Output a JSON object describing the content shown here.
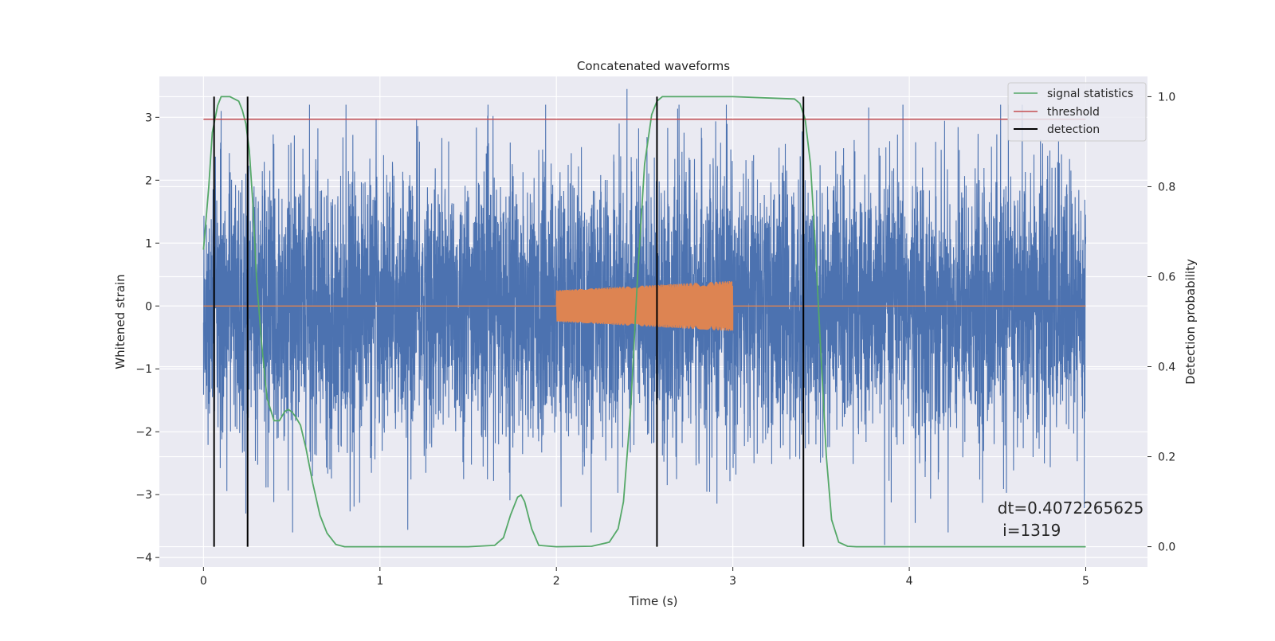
{
  "chart_data": {
    "type": "line",
    "title": "Concatenated waveforms",
    "xlabel": "Time (s)",
    "ylabel": "Whitened strain",
    "y2label": "Detection probability",
    "xlim": [
      -0.25,
      5.35
    ],
    "ylim": [
      -4.15,
      3.65
    ],
    "y2lim": [
      -0.045,
      1.045
    ],
    "x_ticks": [
      0,
      1,
      2,
      3,
      4,
      5
    ],
    "y_ticks": [
      -4,
      -3,
      -2,
      -1,
      0,
      1,
      2,
      3
    ],
    "y2_ticks": [
      0.0,
      0.2,
      0.4,
      0.6,
      0.8,
      1.0
    ],
    "grid": true,
    "legend_position": "top-right",
    "legend": [
      {
        "label": "signal statistics",
        "color": "#55a868"
      },
      {
        "label": "threshold",
        "color": "#c44e52"
      },
      {
        "label": "detection",
        "color": "#000000"
      }
    ],
    "series": [
      {
        "role": "strain",
        "color": "#4c72b0",
        "x_range": [
          0,
          5
        ],
        "typical_amplitude": 1.3,
        "peaks": [
          3.45,
          3.1,
          -3.8,
          -3.3
        ]
      },
      {
        "role": "template",
        "color": "#dd8452",
        "x_range": [
          0,
          5
        ],
        "chirp_x_range": [
          2,
          3
        ],
        "amplitude_range": [
          0.25,
          0.4
        ]
      },
      {
        "name": "signal statistics",
        "color": "#55a868",
        "axis": "right",
        "x": [
          0,
          0.03,
          0.05,
          0.08,
          0.1,
          0.12,
          0.15,
          0.2,
          0.22,
          0.24,
          0.26,
          0.28,
          0.3,
          0.33,
          0.36,
          0.4,
          0.43,
          0.46,
          0.48,
          0.5,
          0.52,
          0.55,
          0.58,
          0.62,
          0.66,
          0.7,
          0.75,
          0.8,
          1.0,
          1.5,
          1.65,
          1.7,
          1.74,
          1.78,
          1.8,
          1.82,
          1.86,
          1.9,
          2.0,
          2.2,
          2.3,
          2.35,
          2.38,
          2.42,
          2.46,
          2.5,
          2.54,
          2.57,
          2.6,
          2.65,
          2.7,
          2.8,
          3.0,
          3.35,
          3.38,
          3.41,
          3.44,
          3.47,
          3.5,
          3.53,
          3.56,
          3.6,
          3.65,
          3.7,
          4.0,
          5.0
        ],
        "y": [
          0.66,
          0.8,
          0.92,
          0.98,
          1.0,
          1.0,
          1.0,
          0.99,
          0.97,
          0.94,
          0.88,
          0.76,
          0.6,
          0.45,
          0.33,
          0.28,
          0.28,
          0.3,
          0.305,
          0.3,
          0.29,
          0.27,
          0.22,
          0.14,
          0.07,
          0.03,
          0.005,
          0.0,
          0.0,
          0.0,
          0.003,
          0.02,
          0.07,
          0.11,
          0.115,
          0.1,
          0.04,
          0.003,
          0.0,
          0.001,
          0.01,
          0.04,
          0.1,
          0.3,
          0.6,
          0.85,
          0.96,
          0.99,
          1.0,
          1.0,
          1.0,
          1.0,
          1.0,
          0.995,
          0.985,
          0.95,
          0.85,
          0.65,
          0.42,
          0.2,
          0.06,
          0.01,
          0.001,
          0.0,
          0.0,
          0.0
        ]
      },
      {
        "name": "threshold",
        "color": "#c44e52",
        "axis": "right",
        "x": [
          0,
          5
        ],
        "y": [
          0.95,
          0.95
        ]
      }
    ],
    "detections_x": [
      0.06,
      0.25,
      2.57,
      3.4
    ],
    "annotation": "dt=0.4072265625\n i=1319",
    "annotation_position": [
      4.5,
      -3.3
    ]
  }
}
